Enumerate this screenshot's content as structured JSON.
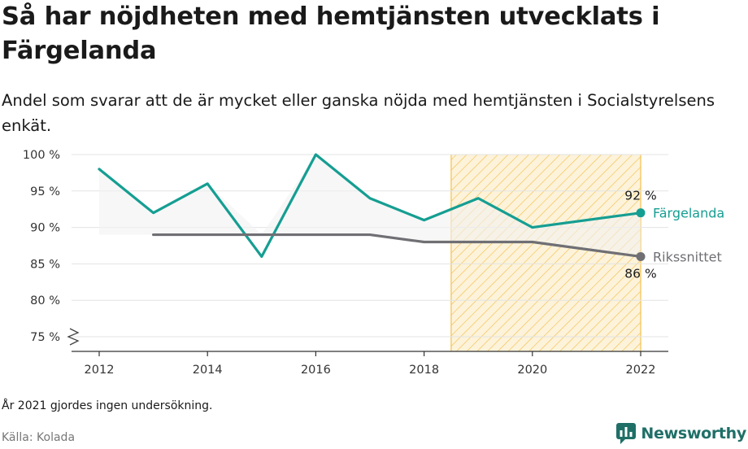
{
  "header": {
    "title": "Så har nöjdheten med hemtjänsten utvecklats i Färgelanda",
    "subtitle": "Andel som svarar att de är mycket eller ganska nöjda med hemtjänsten i Socialstyrelsens enkät."
  },
  "footer": {
    "note": "År 2021 gjordes ingen undersökning.",
    "source": "Källa: Kolada",
    "brand": "Newsworthy"
  },
  "colors": {
    "fargelanda": "#159e92",
    "riket": "#6f6f74",
    "highlight_stroke": "#f3c04f",
    "highlight_fill": "#fdf3da",
    "brand": "#1f6f67"
  },
  "chart_data": {
    "type": "line",
    "x": [
      2012,
      2013,
      2014,
      2015,
      2016,
      2017,
      2018,
      2019,
      2020,
      2022
    ],
    "series": [
      {
        "name": "Färgelanda",
        "x": [
          2012,
          2013,
          2014,
          2015,
          2016,
          2017,
          2018,
          2019,
          2020,
          2022
        ],
        "values": [
          98,
          92,
          96,
          86,
          100,
          94,
          91,
          94,
          90,
          92
        ],
        "end_label": "92 %"
      },
      {
        "name": "Rikssnittet",
        "x": [
          2013,
          2014,
          2015,
          2016,
          2017,
          2018,
          2019,
          2020,
          2022
        ],
        "values": [
          89,
          89,
          89,
          89,
          89,
          88,
          88,
          88,
          86
        ],
        "end_label": "86 %"
      }
    ],
    "xticks": [
      2012,
      2014,
      2016,
      2018,
      2020,
      2022
    ],
    "xtick_labels": [
      "2012",
      "2014",
      "2016",
      "2018",
      "2020",
      "2022"
    ],
    "yticks": [
      75,
      80,
      85,
      90,
      95,
      100
    ],
    "ytick_labels": [
      "75 %",
      "80 %",
      "85 %",
      "90 %",
      "95 %",
      "100 %"
    ],
    "xlim": [
      2012,
      2022
    ],
    "ylim": [
      75,
      100
    ],
    "y_axis_break": true,
    "highlight_range": [
      2018.5,
      2022
    ],
    "grid": "horizontal",
    "legend": "line-end labels"
  }
}
